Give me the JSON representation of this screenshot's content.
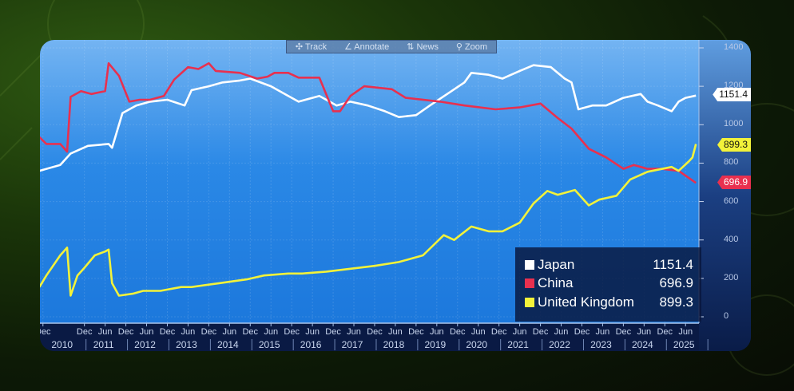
{
  "toolbar": {
    "track": "✣ Track",
    "annotate": "∠ Annotate",
    "news": "⇅ News",
    "zoom": "⚲ Zoom"
  },
  "colors": {
    "Japan": "#ffffff",
    "China": "#e8304f",
    "United Kingdom": "#f2f23a",
    "plot_top": "#74b4f2",
    "plot_bottom": "#1f7ee0"
  },
  "chart_data": {
    "type": "line",
    "title": "",
    "xlabel": "",
    "ylabel": "",
    "ylim": [
      0,
      1400
    ],
    "y_ticks": [
      0,
      200,
      400,
      600,
      800,
      1000,
      1200,
      1400
    ],
    "y_axis_position": "right",
    "grid": true,
    "legend_position": "bottom-right",
    "x_ticks": [
      {
        "date": "2009-12",
        "label": "Dec"
      },
      {
        "date": "2010-12",
        "label": "Dec"
      },
      {
        "date": "2011-06",
        "label": "Jun"
      },
      {
        "date": "2011-12",
        "label": "Dec"
      },
      {
        "date": "2012-06",
        "label": "Jun"
      },
      {
        "date": "2012-12",
        "label": "Dec"
      },
      {
        "date": "2013-06",
        "label": "Jun"
      },
      {
        "date": "2013-12",
        "label": "Dec"
      },
      {
        "date": "2014-06",
        "label": "Jun"
      },
      {
        "date": "2014-12",
        "label": "Dec"
      },
      {
        "date": "2015-06",
        "label": "Jun"
      },
      {
        "date": "2015-12",
        "label": "Dec"
      },
      {
        "date": "2016-06",
        "label": "Jun"
      },
      {
        "date": "2016-12",
        "label": "Dec"
      },
      {
        "date": "2017-06",
        "label": "Jun"
      },
      {
        "date": "2017-12",
        "label": "Dec"
      },
      {
        "date": "2018-06",
        "label": "Jun"
      },
      {
        "date": "2018-12",
        "label": "Dec"
      },
      {
        "date": "2019-06",
        "label": "Jun"
      },
      {
        "date": "2019-12",
        "label": "Dec"
      },
      {
        "date": "2020-06",
        "label": "Jun"
      },
      {
        "date": "2020-12",
        "label": "Dec"
      },
      {
        "date": "2021-06",
        "label": "Jun"
      },
      {
        "date": "2021-12",
        "label": "Dec"
      },
      {
        "date": "2022-06",
        "label": "Jun"
      },
      {
        "date": "2022-12",
        "label": "Dec"
      },
      {
        "date": "2023-06",
        "label": "Jun"
      },
      {
        "date": "2023-12",
        "label": "Dec"
      },
      {
        "date": "2024-06",
        "label": "Jun"
      },
      {
        "date": "2024-12",
        "label": "Dec"
      },
      {
        "date": "2025-06",
        "label": "Jun"
      }
    ],
    "x_years": [
      "2010",
      "2011",
      "2012",
      "2013",
      "2014",
      "2015",
      "2016",
      "2017",
      "2018",
      "2019",
      "2020",
      "2021",
      "2022",
      "2023",
      "2024",
      "2025"
    ],
    "series": [
      {
        "name": "Japan",
        "last": "1151.4",
        "points": [
          [
            "2009-11",
            760
          ],
          [
            "2010-05",
            790
          ],
          [
            "2010-08",
            850
          ],
          [
            "2011-01",
            890
          ],
          [
            "2011-07",
            900
          ],
          [
            "2011-08",
            880
          ],
          [
            "2011-11",
            1060
          ],
          [
            "2012-03",
            1100
          ],
          [
            "2012-07",
            1120
          ],
          [
            "2012-12",
            1130
          ],
          [
            "2013-05",
            1100
          ],
          [
            "2013-07",
            1180
          ],
          [
            "2013-12",
            1200
          ],
          [
            "2014-04",
            1220
          ],
          [
            "2014-09",
            1230
          ],
          [
            "2014-12",
            1240
          ],
          [
            "2015-06",
            1200
          ],
          [
            "2015-11",
            1150
          ],
          [
            "2016-02",
            1120
          ],
          [
            "2016-08",
            1150
          ],
          [
            "2017-01",
            1100
          ],
          [
            "2017-05",
            1120
          ],
          [
            "2017-10",
            1100
          ],
          [
            "2018-03",
            1070
          ],
          [
            "2018-07",
            1040
          ],
          [
            "2018-12",
            1050
          ],
          [
            "2019-04",
            1100
          ],
          [
            "2019-09",
            1160
          ],
          [
            "2020-02",
            1220
          ],
          [
            "2020-04",
            1270
          ],
          [
            "2020-09",
            1260
          ],
          [
            "2021-01",
            1240
          ],
          [
            "2021-06",
            1280
          ],
          [
            "2021-10",
            1310
          ],
          [
            "2022-03",
            1300
          ],
          [
            "2022-07",
            1240
          ],
          [
            "2022-09",
            1220
          ],
          [
            "2022-11",
            1080
          ],
          [
            "2023-03",
            1100
          ],
          [
            "2023-07",
            1100
          ],
          [
            "2023-12",
            1140
          ],
          [
            "2024-05",
            1160
          ],
          [
            "2024-07",
            1120
          ],
          [
            "2024-10",
            1100
          ],
          [
            "2025-02",
            1070
          ],
          [
            "2025-04",
            1120
          ],
          [
            "2025-06",
            1140
          ],
          [
            "2025-09",
            1151.4
          ]
        ]
      },
      {
        "name": "China",
        "last": "696.9",
        "points": [
          [
            "2009-11",
            935
          ],
          [
            "2010-01",
            900
          ],
          [
            "2010-05",
            900
          ],
          [
            "2010-07",
            860
          ],
          [
            "2010-08",
            1145
          ],
          [
            "2010-11",
            1175
          ],
          [
            "2011-02",
            1160
          ],
          [
            "2011-06",
            1175
          ],
          [
            "2011-07",
            1320
          ],
          [
            "2011-10",
            1255
          ],
          [
            "2012-01",
            1120
          ],
          [
            "2012-04",
            1130
          ],
          [
            "2012-07",
            1130
          ],
          [
            "2012-11",
            1150
          ],
          [
            "2013-02",
            1235
          ],
          [
            "2013-06",
            1300
          ],
          [
            "2013-09",
            1290
          ],
          [
            "2013-12",
            1320
          ],
          [
            "2014-02",
            1280
          ],
          [
            "2014-09",
            1270
          ],
          [
            "2015-02",
            1240
          ],
          [
            "2015-05",
            1250
          ],
          [
            "2015-07",
            1270
          ],
          [
            "2015-11",
            1270
          ],
          [
            "2016-02",
            1245
          ],
          [
            "2016-08",
            1245
          ],
          [
            "2016-12",
            1070
          ],
          [
            "2017-02",
            1070
          ],
          [
            "2017-05",
            1150
          ],
          [
            "2017-09",
            1200
          ],
          [
            "2018-05",
            1185
          ],
          [
            "2018-09",
            1140
          ],
          [
            "2019-07",
            1120
          ],
          [
            "2020-02",
            1100
          ],
          [
            "2020-11",
            1080
          ],
          [
            "2021-06",
            1090
          ],
          [
            "2021-12",
            1110
          ],
          [
            "2022-05",
            1035
          ],
          [
            "2022-09",
            980
          ],
          [
            "2023-02",
            875
          ],
          [
            "2023-07",
            830
          ],
          [
            "2023-12",
            770
          ],
          [
            "2024-03",
            790
          ],
          [
            "2024-07",
            770
          ],
          [
            "2024-11",
            770
          ],
          [
            "2025-04",
            760
          ],
          [
            "2025-09",
            696.9
          ]
        ]
      },
      {
        "name": "United Kingdom",
        "last": "899.3",
        "points": [
          [
            "2009-11",
            155
          ],
          [
            "2010-01",
            215
          ],
          [
            "2010-05",
            320
          ],
          [
            "2010-07",
            360
          ],
          [
            "2010-08",
            110
          ],
          [
            "2010-10",
            215
          ],
          [
            "2010-12",
            255
          ],
          [
            "2011-03",
            320
          ],
          [
            "2011-06",
            340
          ],
          [
            "2011-07",
            350
          ],
          [
            "2011-08",
            175
          ],
          [
            "2011-10",
            110
          ],
          [
            "2012-02",
            120
          ],
          [
            "2012-05",
            135
          ],
          [
            "2012-10",
            135
          ],
          [
            "2013-04",
            155
          ],
          [
            "2013-07",
            155
          ],
          [
            "2014-03",
            175
          ],
          [
            "2014-11",
            195
          ],
          [
            "2015-04",
            215
          ],
          [
            "2015-11",
            225
          ],
          [
            "2016-03",
            225
          ],
          [
            "2016-10",
            235
          ],
          [
            "2017-05",
            250
          ],
          [
            "2017-12",
            265
          ],
          [
            "2018-07",
            285
          ],
          [
            "2019-02",
            320
          ],
          [
            "2019-08",
            425
          ],
          [
            "2019-11",
            400
          ],
          [
            "2020-04",
            470
          ],
          [
            "2020-09",
            445
          ],
          [
            "2021-01",
            445
          ],
          [
            "2021-06",
            490
          ],
          [
            "2021-10",
            590
          ],
          [
            "2022-02",
            655
          ],
          [
            "2022-05",
            635
          ],
          [
            "2022-10",
            660
          ],
          [
            "2023-02",
            580
          ],
          [
            "2023-05",
            610
          ],
          [
            "2023-10",
            630
          ],
          [
            "2024-02",
            715
          ],
          [
            "2024-07",
            755
          ],
          [
            "2025-02",
            780
          ],
          [
            "2025-04",
            760
          ],
          [
            "2025-07",
            810
          ],
          [
            "2025-08",
            830
          ],
          [
            "2025-09",
            899.3
          ]
        ]
      }
    ]
  }
}
